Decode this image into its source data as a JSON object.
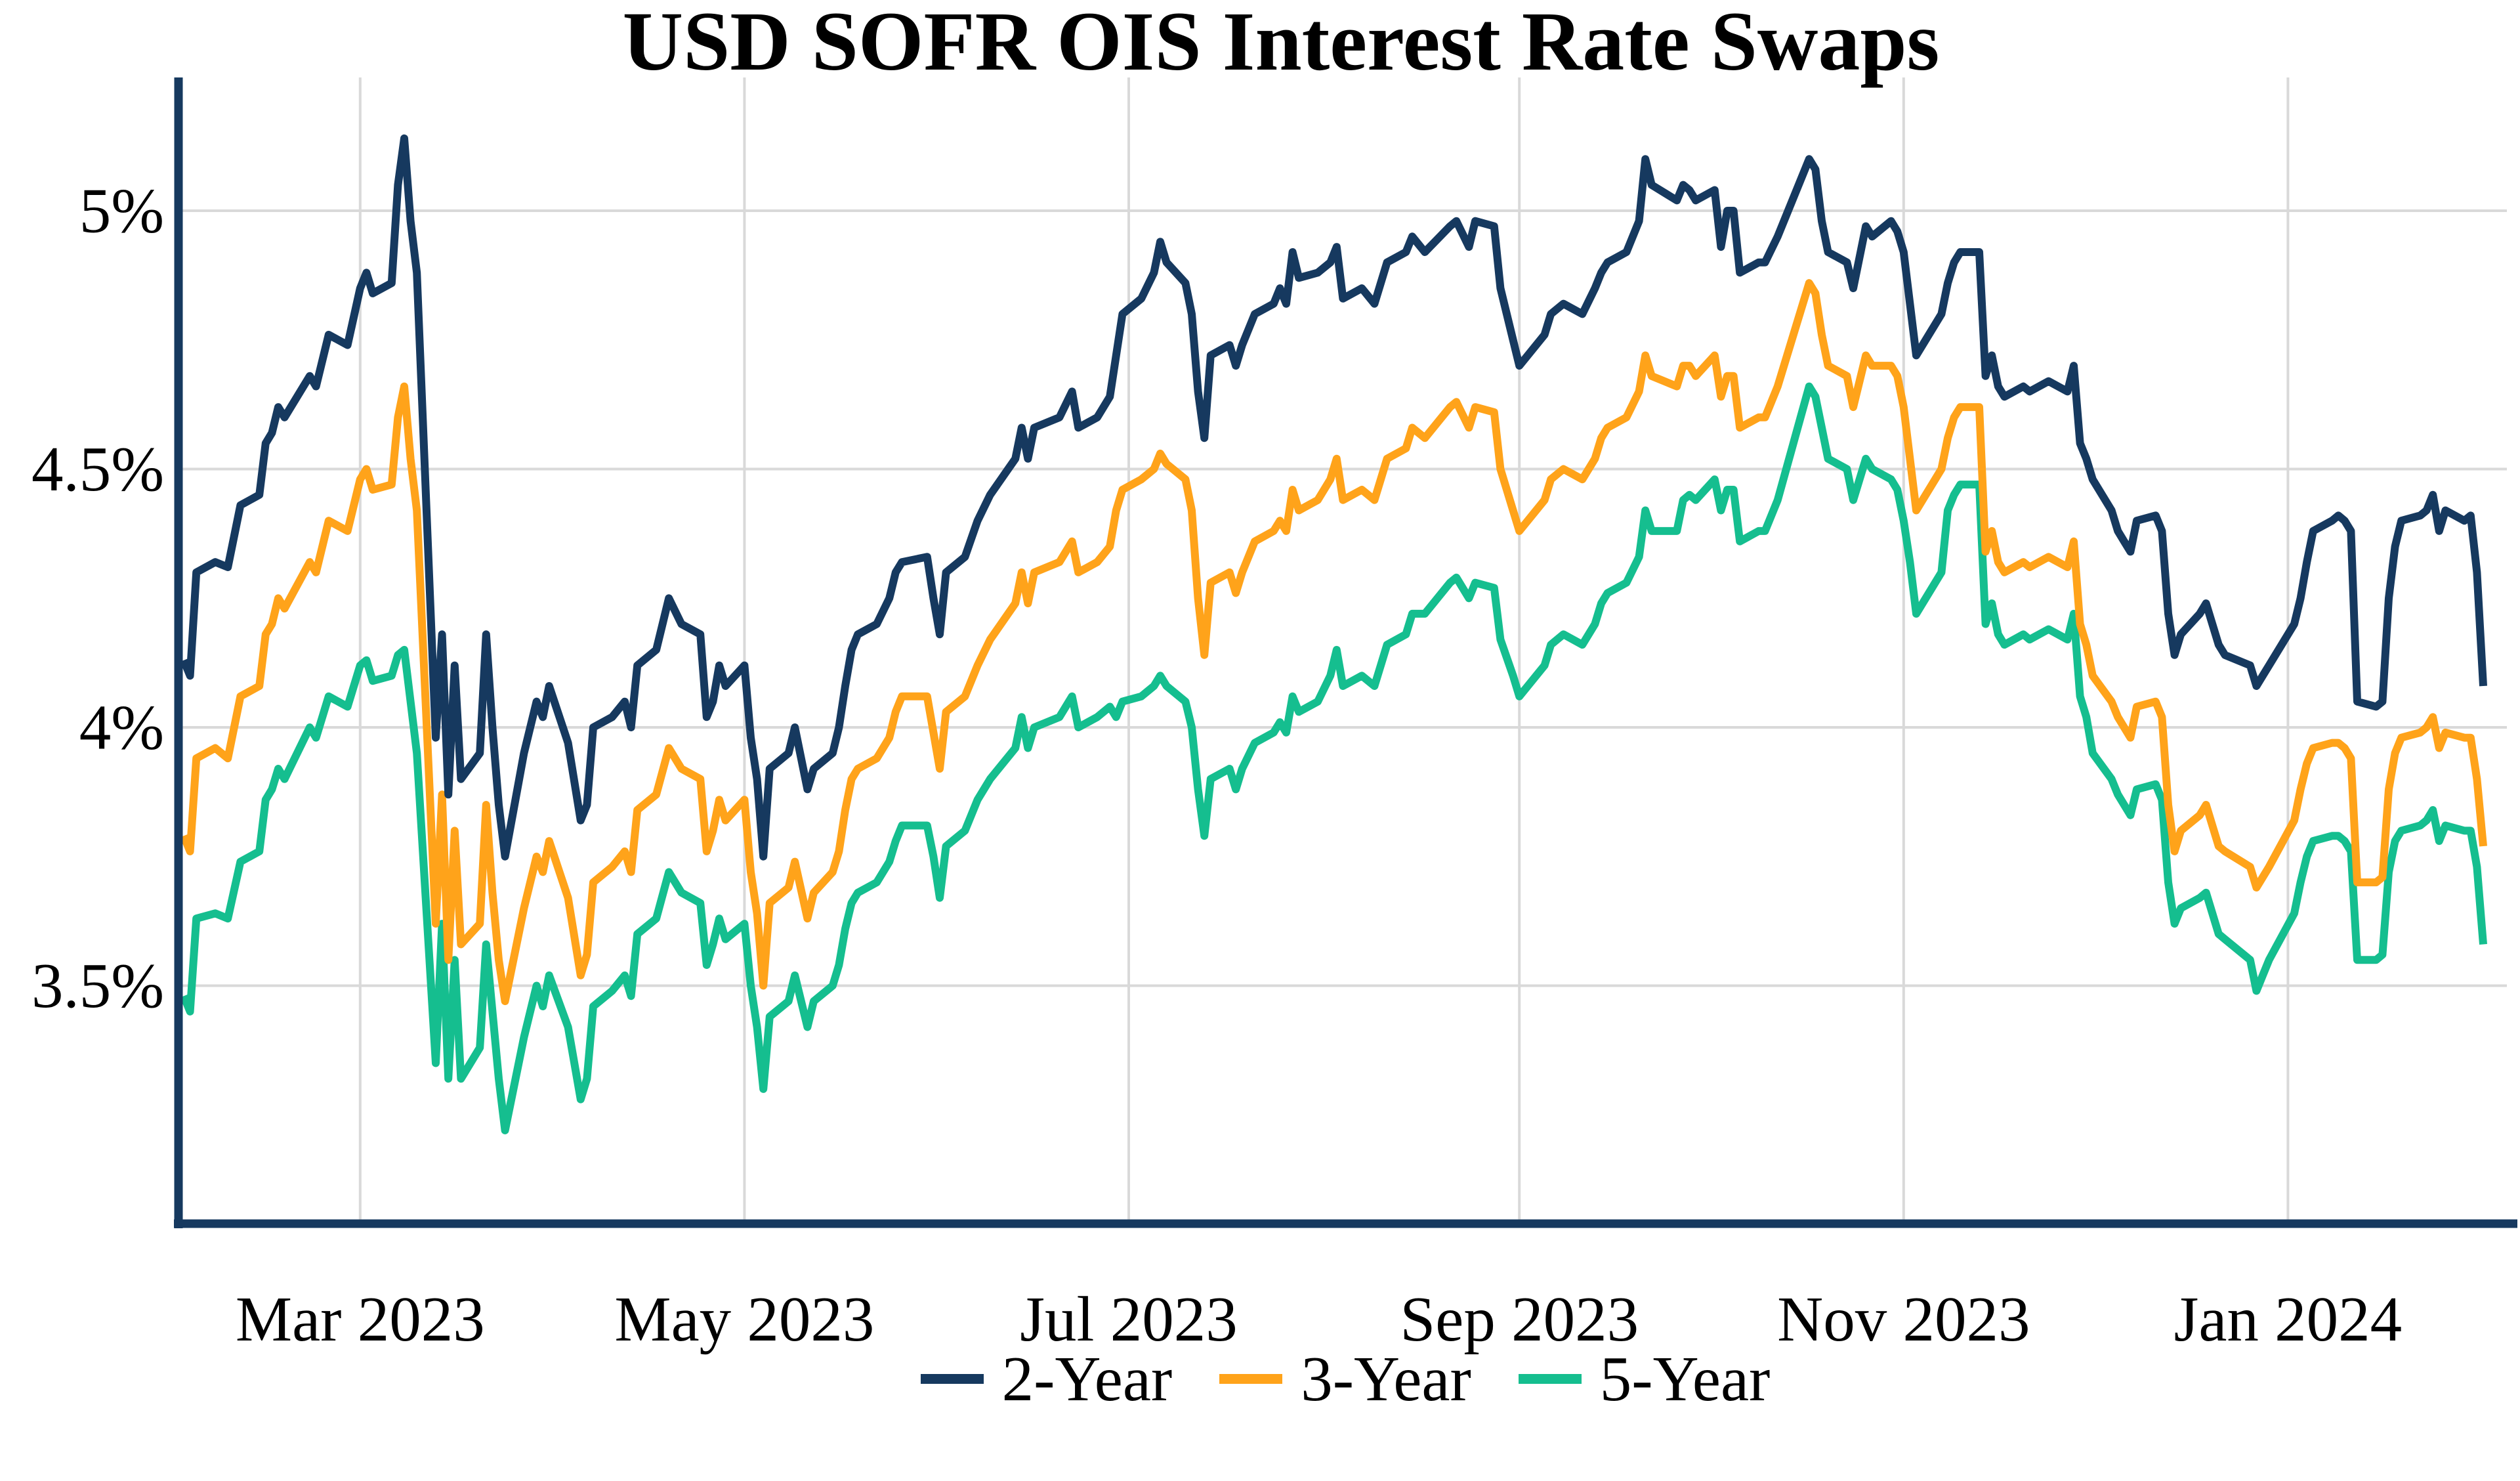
{
  "title": "USD SOFR OIS Interest Rate Swaps",
  "colors": {
    "navy": "#16395F",
    "orange": "#FFA31A",
    "green": "#15BE8F",
    "grid": "#D9D9D9",
    "axis": "#16395F",
    "text": "#000000",
    "background": "#FFFFFF"
  },
  "chart_data": {
    "type": "line",
    "title": "USD SOFR OIS Interest Rate Swaps",
    "xlabel": "",
    "ylabel": "",
    "grid": true,
    "legend_position": "bottom",
    "x_range": [
      "2023-02-01",
      "2024-02-01"
    ],
    "y_range": [
      3.05,
      5.26
    ],
    "yticks": [
      {
        "value": 5.0,
        "label": "5%"
      },
      {
        "value": 4.5,
        "label": "4.5%"
      },
      {
        "value": 4.0,
        "label": "4%"
      },
      {
        "value": 3.5,
        "label": "3.5%"
      }
    ],
    "xticks": [
      {
        "date": "2023-03-01",
        "label": "Mar 2023"
      },
      {
        "date": "2023-05-01",
        "label": "May 2023"
      },
      {
        "date": "2023-07-01",
        "label": "Jul 2023"
      },
      {
        "date": "2023-09-01",
        "label": "Sep 2023"
      },
      {
        "date": "2023-11-01",
        "label": "Nov 2023"
      },
      {
        "date": "2024-01-01",
        "label": "Jan 2024"
      }
    ],
    "x": [
      "2023-02-01",
      "2023-02-02",
      "2023-02-03",
      "2023-02-06",
      "2023-02-08",
      "2023-02-10",
      "2023-02-13",
      "2023-02-14",
      "2023-02-15",
      "2023-02-16",
      "2023-02-17",
      "2023-02-21",
      "2023-02-22",
      "2023-02-24",
      "2023-02-27",
      "2023-03-01",
      "2023-03-02",
      "2023-03-03",
      "2023-03-06",
      "2023-03-07",
      "2023-03-08",
      "2023-03-09",
      "2023-03-10",
      "2023-03-13",
      "2023-03-14",
      "2023-03-15",
      "2023-03-16",
      "2023-03-17",
      "2023-03-20",
      "2023-03-21",
      "2023-03-22",
      "2023-03-23",
      "2023-03-24",
      "2023-03-27",
      "2023-03-29",
      "2023-03-30",
      "2023-03-31",
      "2023-04-03",
      "2023-04-05",
      "2023-04-06",
      "2023-04-07",
      "2023-04-10",
      "2023-04-12",
      "2023-04-13",
      "2023-04-14",
      "2023-04-17",
      "2023-04-19",
      "2023-04-21",
      "2023-04-24",
      "2023-04-25",
      "2023-04-26",
      "2023-04-27",
      "2023-04-28",
      "2023-05-01",
      "2023-05-02",
      "2023-05-03",
      "2023-05-04",
      "2023-05-05",
      "2023-05-08",
      "2023-05-09",
      "2023-05-11",
      "2023-05-12",
      "2023-05-15",
      "2023-05-16",
      "2023-05-17",
      "2023-05-18",
      "2023-05-19",
      "2023-05-22",
      "2023-05-24",
      "2023-05-25",
      "2023-05-26",
      "2023-05-30",
      "2023-05-31",
      "2023-06-01",
      "2023-06-02",
      "2023-06-05",
      "2023-06-07",
      "2023-06-09",
      "2023-06-13",
      "2023-06-14",
      "2023-06-15",
      "2023-06-16",
      "2023-06-20",
      "2023-06-22",
      "2023-06-23",
      "2023-06-26",
      "2023-06-28",
      "2023-06-29",
      "2023-06-30",
      "2023-07-03",
      "2023-07-05",
      "2023-07-06",
      "2023-07-07",
      "2023-07-10",
      "2023-07-11",
      "2023-07-12",
      "2023-07-13",
      "2023-07-14",
      "2023-07-17",
      "2023-07-18",
      "2023-07-19",
      "2023-07-21",
      "2023-07-24",
      "2023-07-25",
      "2023-07-26",
      "2023-07-27",
      "2023-07-28",
      "2023-07-31",
      "2023-08-02",
      "2023-08-03",
      "2023-08-04",
      "2023-08-07",
      "2023-08-09",
      "2023-08-10",
      "2023-08-11",
      "2023-08-14",
      "2023-08-15",
      "2023-08-17",
      "2023-08-21",
      "2023-08-22",
      "2023-08-24",
      "2023-08-25",
      "2023-08-28",
      "2023-08-29",
      "2023-08-31",
      "2023-09-01",
      "2023-09-05",
      "2023-09-06",
      "2023-09-08",
      "2023-09-11",
      "2023-09-13",
      "2023-09-14",
      "2023-09-15",
      "2023-09-18",
      "2023-09-20",
      "2023-09-21",
      "2023-09-22",
      "2023-09-26",
      "2023-09-27",
      "2023-09-28",
      "2023-09-29",
      "2023-10-02",
      "2023-10-03",
      "2023-10-04",
      "2023-10-05",
      "2023-10-06",
      "2023-10-09",
      "2023-10-10",
      "2023-10-12",
      "2023-10-17",
      "2023-10-18",
      "2023-10-19",
      "2023-10-20",
      "2023-10-23",
      "2023-10-24",
      "2023-10-26",
      "2023-10-27",
      "2023-10-30",
      "2023-10-31",
      "2023-11-01",
      "2023-11-02",
      "2023-11-03",
      "2023-11-06",
      "2023-11-07",
      "2023-11-08",
      "2023-11-09",
      "2023-11-10",
      "2023-11-13",
      "2023-11-14",
      "2023-11-15",
      "2023-11-16",
      "2023-11-17",
      "2023-11-20",
      "2023-11-21",
      "2023-11-24",
      "2023-11-27",
      "2023-11-28",
      "2023-11-29",
      "2023-11-30",
      "2023-12-01",
      "2023-12-04",
      "2023-12-05",
      "2023-12-06",
      "2023-12-07",
      "2023-12-08",
      "2023-12-11",
      "2023-12-12",
      "2023-12-13",
      "2023-12-14",
      "2023-12-15",
      "2023-12-18",
      "2023-12-19",
      "2023-12-20",
      "2023-12-21",
      "2023-12-22",
      "2023-12-26",
      "2023-12-27",
      "2023-12-28",
      "2023-12-29",
      "2024-01-02",
      "2024-01-03",
      "2024-01-04",
      "2024-01-05",
      "2024-01-08",
      "2024-01-09",
      "2024-01-10",
      "2024-01-11",
      "2024-01-12",
      "2024-01-15",
      "2024-01-16",
      "2024-01-17",
      "2024-01-18",
      "2024-01-19",
      "2024-01-22",
      "2024-01-23",
      "2024-01-24",
      "2024-01-25",
      "2024-01-26",
      "2024-01-29",
      "2024-01-30",
      "2024-01-31",
      "2024-02-01"
    ],
    "series": [
      {
        "name": "2-Year",
        "color": "#16395F",
        "values": [
          4.13,
          4.1,
          4.3,
          4.32,
          4.31,
          4.43,
          4.45,
          4.55,
          4.57,
          4.62,
          4.6,
          4.68,
          4.66,
          4.76,
          4.74,
          4.85,
          4.88,
          4.84,
          4.86,
          5.05,
          5.14,
          4.98,
          4.88,
          3.98,
          4.18,
          3.87,
          4.12,
          3.9,
          3.95,
          4.18,
          4.0,
          3.85,
          3.75,
          3.95,
          4.05,
          4.02,
          4.08,
          3.97,
          3.82,
          3.85,
          4.0,
          4.02,
          4.05,
          4.0,
          4.12,
          4.15,
          4.25,
          4.2,
          4.18,
          4.02,
          4.05,
          4.12,
          4.08,
          4.12,
          3.98,
          3.9,
          3.75,
          3.92,
          3.95,
          4.0,
          3.88,
          3.92,
          3.95,
          4.0,
          4.08,
          4.15,
          4.18,
          4.2,
          4.25,
          4.3,
          4.32,
          4.33,
          4.25,
          4.18,
          4.3,
          4.33,
          4.4,
          4.45,
          4.52,
          4.58,
          4.52,
          4.58,
          4.6,
          4.65,
          4.58,
          4.6,
          4.64,
          4.72,
          4.8,
          4.83,
          4.88,
          4.94,
          4.9,
          4.86,
          4.8,
          4.65,
          4.56,
          4.72,
          4.74,
          4.7,
          4.74,
          4.8,
          4.82,
          4.85,
          4.82,
          4.92,
          4.87,
          4.88,
          4.9,
          4.93,
          4.83,
          4.85,
          4.82,
          4.86,
          4.9,
          4.92,
          4.95,
          4.92,
          4.97,
          4.98,
          4.93,
          4.98,
          4.97,
          4.85,
          4.75,
          4.7,
          4.76,
          4.8,
          4.82,
          4.8,
          4.85,
          4.88,
          4.9,
          4.92,
          4.98,
          5.1,
          5.05,
          5.02,
          5.05,
          5.04,
          5.02,
          5.04,
          4.93,
          5.0,
          5.0,
          4.88,
          4.9,
          4.9,
          4.95,
          5.1,
          5.08,
          4.98,
          4.92,
          4.9,
          4.85,
          4.97,
          4.95,
          4.98,
          4.96,
          4.92,
          4.82,
          4.72,
          4.78,
          4.8,
          4.86,
          4.9,
          4.92,
          4.92,
          4.68,
          4.72,
          4.66,
          4.64,
          4.66,
          4.65,
          4.67,
          4.65,
          4.7,
          4.55,
          4.52,
          4.48,
          4.42,
          4.38,
          4.36,
          4.34,
          4.4,
          4.41,
          4.38,
          4.22,
          4.14,
          4.18,
          4.22,
          4.24,
          4.2,
          4.16,
          4.14,
          4.12,
          4.08,
          4.1,
          4.12,
          4.2,
          4.25,
          4.32,
          4.38,
          4.4,
          4.41,
          4.4,
          4.38,
          4.05,
          4.04,
          4.05,
          4.25,
          4.35,
          4.4,
          4.41,
          4.42,
          4.45,
          4.38,
          4.42,
          4.4,
          4.41,
          4.3,
          4.08
        ]
      },
      {
        "name": "3-Year",
        "color": "#FFA31A",
        "values": [
          3.79,
          3.76,
          3.94,
          3.96,
          3.94,
          4.06,
          4.08,
          4.18,
          4.2,
          4.25,
          4.23,
          4.32,
          4.3,
          4.4,
          4.38,
          4.48,
          4.5,
          4.46,
          4.47,
          4.6,
          4.66,
          4.52,
          4.42,
          3.62,
          3.87,
          3.55,
          3.8,
          3.58,
          3.62,
          3.85,
          3.68,
          3.55,
          3.47,
          3.65,
          3.75,
          3.72,
          3.78,
          3.67,
          3.52,
          3.56,
          3.7,
          3.73,
          3.76,
          3.72,
          3.84,
          3.87,
          3.96,
          3.92,
          3.9,
          3.76,
          3.8,
          3.86,
          3.82,
          3.86,
          3.72,
          3.64,
          3.5,
          3.66,
          3.69,
          3.74,
          3.63,
          3.68,
          3.72,
          3.76,
          3.84,
          3.9,
          3.92,
          3.94,
          3.98,
          4.03,
          4.06,
          4.06,
          3.99,
          3.92,
          4.03,
          4.06,
          4.12,
          4.17,
          4.24,
          4.3,
          4.24,
          4.3,
          4.32,
          4.36,
          4.3,
          4.32,
          4.35,
          4.42,
          4.46,
          4.48,
          4.5,
          4.53,
          4.51,
          4.48,
          4.42,
          4.25,
          4.14,
          4.28,
          4.3,
          4.26,
          4.3,
          4.36,
          4.38,
          4.4,
          4.38,
          4.46,
          4.42,
          4.44,
          4.48,
          4.52,
          4.44,
          4.46,
          4.44,
          4.48,
          4.52,
          4.54,
          4.58,
          4.56,
          4.62,
          4.63,
          4.58,
          4.62,
          4.61,
          4.5,
          4.42,
          4.38,
          4.44,
          4.48,
          4.5,
          4.48,
          4.52,
          4.56,
          4.58,
          4.6,
          4.65,
          4.72,
          4.68,
          4.66,
          4.7,
          4.7,
          4.68,
          4.72,
          4.64,
          4.68,
          4.68,
          4.58,
          4.6,
          4.6,
          4.66,
          4.86,
          4.84,
          4.76,
          4.7,
          4.68,
          4.62,
          4.72,
          4.7,
          4.7,
          4.68,
          4.62,
          4.52,
          4.42,
          4.48,
          4.5,
          4.56,
          4.6,
          4.62,
          4.62,
          4.34,
          4.38,
          4.32,
          4.3,
          4.32,
          4.31,
          4.33,
          4.31,
          4.36,
          4.2,
          4.16,
          4.1,
          4.05,
          4.02,
          4.0,
          3.98,
          4.04,
          4.05,
          4.02,
          3.85,
          3.76,
          3.8,
          3.83,
          3.85,
          3.81,
          3.77,
          3.76,
          3.73,
          3.69,
          3.71,
          3.73,
          3.82,
          3.88,
          3.93,
          3.96,
          3.97,
          3.97,
          3.96,
          3.94,
          3.7,
          3.7,
          3.71,
          3.88,
          3.95,
          3.98,
          3.99,
          4.0,
          4.02,
          3.96,
          3.99,
          3.98,
          3.98,
          3.9,
          3.77
        ]
      },
      {
        "name": "5-Year",
        "color": "#15BE8F",
        "values": [
          3.48,
          3.45,
          3.63,
          3.64,
          3.63,
          3.74,
          3.76,
          3.86,
          3.88,
          3.92,
          3.9,
          4.0,
          3.98,
          4.06,
          4.04,
          4.12,
          4.13,
          4.09,
          4.1,
          4.14,
          4.15,
          4.05,
          3.95,
          3.35,
          3.62,
          3.32,
          3.55,
          3.32,
          3.38,
          3.58,
          3.45,
          3.32,
          3.22,
          3.4,
          3.5,
          3.46,
          3.52,
          3.42,
          3.28,
          3.32,
          3.46,
          3.49,
          3.52,
          3.48,
          3.6,
          3.63,
          3.72,
          3.68,
          3.66,
          3.54,
          3.58,
          3.63,
          3.59,
          3.62,
          3.5,
          3.42,
          3.3,
          3.44,
          3.47,
          3.52,
          3.42,
          3.47,
          3.5,
          3.54,
          3.61,
          3.66,
          3.68,
          3.7,
          3.74,
          3.78,
          3.81,
          3.81,
          3.75,
          3.67,
          3.77,
          3.8,
          3.86,
          3.9,
          3.96,
          4.02,
          3.96,
          4.0,
          4.02,
          4.06,
          4.0,
          4.02,
          4.04,
          4.02,
          4.05,
          4.06,
          4.08,
          4.1,
          4.08,
          4.05,
          4.0,
          3.88,
          3.79,
          3.9,
          3.92,
          3.88,
          3.92,
          3.97,
          3.99,
          4.01,
          3.99,
          4.06,
          4.03,
          4.05,
          4.1,
          4.15,
          4.08,
          4.1,
          4.08,
          4.12,
          4.16,
          4.18,
          4.22,
          4.22,
          4.28,
          4.29,
          4.25,
          4.28,
          4.27,
          4.17,
          4.1,
          4.06,
          4.12,
          4.16,
          4.18,
          4.16,
          4.2,
          4.24,
          4.26,
          4.28,
          4.33,
          4.42,
          4.38,
          4.38,
          4.44,
          4.45,
          4.44,
          4.48,
          4.42,
          4.46,
          4.46,
          4.36,
          4.38,
          4.38,
          4.44,
          4.66,
          4.64,
          4.58,
          4.52,
          4.5,
          4.44,
          4.52,
          4.5,
          4.48,
          4.46,
          4.4,
          4.32,
          4.22,
          4.28,
          4.3,
          4.42,
          4.45,
          4.47,
          4.47,
          4.2,
          4.24,
          4.18,
          4.16,
          4.18,
          4.17,
          4.19,
          4.17,
          4.22,
          4.06,
          4.02,
          3.95,
          3.9,
          3.87,
          3.85,
          3.83,
          3.88,
          3.89,
          3.86,
          3.7,
          3.62,
          3.65,
          3.67,
          3.68,
          3.64,
          3.6,
          3.59,
          3.55,
          3.49,
          3.52,
          3.55,
          3.64,
          3.7,
          3.75,
          3.78,
          3.79,
          3.79,
          3.78,
          3.76,
          3.55,
          3.55,
          3.56,
          3.72,
          3.78,
          3.8,
          3.81,
          3.82,
          3.84,
          3.78,
          3.81,
          3.8,
          3.8,
          3.73,
          3.58
        ]
      }
    ]
  }
}
